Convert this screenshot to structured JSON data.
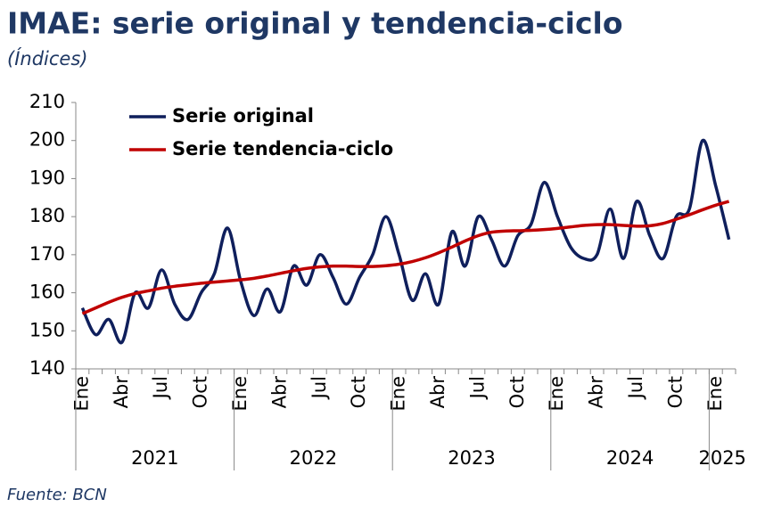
{
  "chart_data": {
    "type": "line",
    "title": "IMAE: serie original y tendencia-ciclo",
    "subtitle": "(Índices)",
    "source": "Fuente: BCN",
    "categories": [
      "Ene",
      null,
      null,
      "Abr",
      null,
      null,
      "Jul",
      null,
      null,
      "Oct",
      null,
      null,
      "Ene",
      null,
      null,
      "Abr",
      null,
      null,
      "Jul",
      null,
      null,
      "Oct",
      null,
      null,
      "Ene",
      null,
      null,
      "Abr",
      null,
      null,
      "Jul",
      null,
      null,
      "Oct",
      null,
      null,
      "Ene",
      null,
      null,
      "Abr",
      null,
      null,
      "Jul",
      null,
      null,
      "Oct",
      null,
      null,
      "Ene",
      null
    ],
    "x_groups": [
      {
        "label": "2021",
        "count": 12
      },
      {
        "label": "2022",
        "count": 12
      },
      {
        "label": "2023",
        "count": 12
      },
      {
        "label": "2024",
        "count": 12
      },
      {
        "label": "2025",
        "count": 2
      }
    ],
    "series": [
      {
        "name": "Serie original",
        "color": "#0f1f5c",
        "values": [
          156,
          149,
          153,
          147,
          160,
          156,
          166,
          157,
          153,
          160,
          165,
          177,
          163,
          154,
          161,
          155,
          167,
          162,
          170,
          164,
          157,
          164,
          170,
          180,
          170,
          158,
          165,
          157,
          176,
          167,
          180,
          174,
          167,
          175,
          178,
          189,
          180,
          172,
          169,
          170,
          182,
          169,
          184,
          175,
          169,
          180,
          182,
          200,
          188,
          174
        ]
      },
      {
        "name": "Serie tendencia-ciclo",
        "color": "#c00000",
        "values": [
          154.5,
          156,
          157.5,
          158.8,
          159.8,
          160.5,
          161.2,
          161.7,
          162.1,
          162.5,
          162.8,
          163.1,
          163.4,
          163.8,
          164.4,
          165.1,
          165.8,
          166.4,
          166.8,
          167,
          167,
          166.9,
          166.9,
          167.1,
          167.5,
          168.2,
          169.2,
          170.5,
          172,
          173.6,
          175,
          175.9,
          176.2,
          176.3,
          176.4,
          176.6,
          176.9,
          177.3,
          177.7,
          177.9,
          177.9,
          177.7,
          177.5,
          177.6,
          178.2,
          179.3,
          180.5,
          181.8,
          183,
          184
        ]
      }
    ],
    "ylim": [
      140,
      210
    ],
    "yticks": [
      140,
      150,
      160,
      170,
      180,
      190,
      200,
      210
    ],
    "grid": false,
    "legend": "top-left"
  }
}
